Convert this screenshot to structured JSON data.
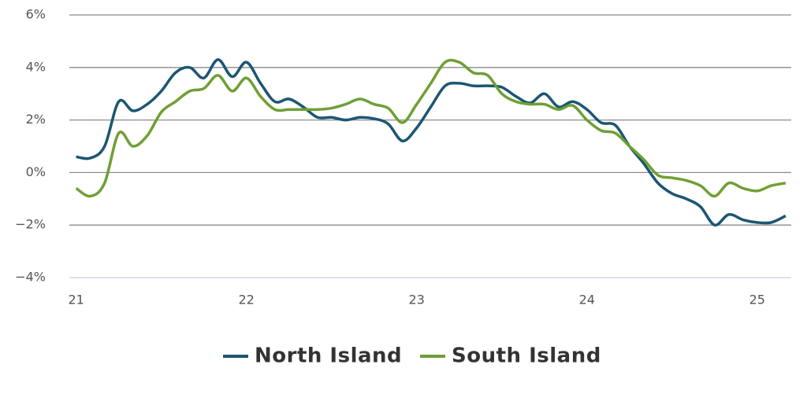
{
  "chart_data": {
    "type": "line",
    "x": [
      21.0,
      21.083,
      21.167,
      21.25,
      21.333,
      21.417,
      21.5,
      21.583,
      21.667,
      21.75,
      21.833,
      21.917,
      22.0,
      22.083,
      22.167,
      22.25,
      22.333,
      22.417,
      22.5,
      22.583,
      22.667,
      22.75,
      22.833,
      22.917,
      23.0,
      23.083,
      23.167,
      23.25,
      23.333,
      23.417,
      23.5,
      23.583,
      23.667,
      23.75,
      23.833,
      23.917,
      24.0,
      24.083,
      24.167,
      24.25,
      24.333,
      24.417,
      24.5,
      24.583,
      24.667,
      24.75,
      24.833,
      24.917,
      25.0,
      25.083,
      25.167
    ],
    "series": [
      {
        "name": "North Island",
        "color": "#1b5673",
        "values": [
          0.6,
          0.55,
          1.0,
          2.7,
          2.35,
          2.6,
          3.1,
          3.8,
          4.0,
          3.6,
          4.3,
          3.65,
          4.2,
          3.4,
          2.7,
          2.8,
          2.5,
          2.1,
          2.1,
          2.0,
          2.1,
          2.05,
          1.85,
          1.2,
          1.7,
          2.5,
          3.3,
          3.4,
          3.3,
          3.3,
          3.25,
          2.9,
          2.65,
          3.0,
          2.5,
          2.7,
          2.4,
          1.9,
          1.8,
          1.0,
          0.35,
          -0.4,
          -0.8,
          -1.0,
          -1.3,
          -2.0,
          -1.6,
          -1.8,
          -1.9,
          -1.9,
          -1.65
        ]
      },
      {
        "name": "South Island",
        "color": "#6f9f35",
        "values": [
          -0.6,
          -0.9,
          -0.4,
          1.5,
          1.0,
          1.4,
          2.3,
          2.7,
          3.1,
          3.2,
          3.7,
          3.1,
          3.6,
          2.9,
          2.4,
          2.4,
          2.4,
          2.4,
          2.45,
          2.6,
          2.8,
          2.6,
          2.45,
          1.9,
          2.6,
          3.4,
          4.2,
          4.2,
          3.8,
          3.7,
          3.0,
          2.7,
          2.6,
          2.6,
          2.4,
          2.55,
          2.0,
          1.6,
          1.5,
          1.0,
          0.5,
          -0.1,
          -0.2,
          -0.3,
          -0.5,
          -0.9,
          -0.4,
          -0.6,
          -0.7,
          -0.5,
          -0.4
        ]
      }
    ],
    "xlim": [
      20.96,
      25.2
    ],
    "xticks": [
      21,
      22,
      23,
      24,
      25
    ],
    "ylim": [
      -4,
      6
    ],
    "yticks": [
      {
        "value": -4,
        "label": "−4%"
      },
      {
        "value": -2,
        "label": "−2%"
      },
      {
        "value": 0,
        "label": "0%"
      },
      {
        "value": 2,
        "label": "2%"
      },
      {
        "value": 4,
        "label": "4%"
      },
      {
        "value": 6,
        "label": "6%"
      }
    ],
    "grid": true,
    "legend": "bottom"
  }
}
